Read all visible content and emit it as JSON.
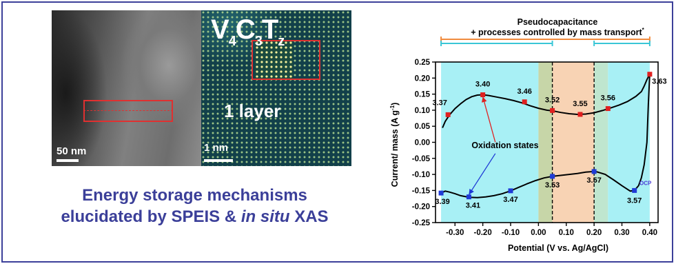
{
  "micrograph": {
    "formula": {
      "V": "V",
      "n1": "4",
      "C": "C",
      "n2": "3",
      "T": "T",
      "z": "z"
    },
    "layer_label": "1 layer",
    "scale_left": "50 nm",
    "scale_right": "1 nm"
  },
  "caption": {
    "line1": "Energy storage mechanisms",
    "line2_prefix": "elucidated by SPEIS & ",
    "line2_italic": "in situ",
    "line2_suffix": " XAS"
  },
  "chart_data": {
    "type": "line",
    "title": "",
    "xlabel": "Potential (V vs. Ag/AgCl)",
    "ylabel_main": "Current/ mass (A g",
    "ylabel_sup": "-1",
    "ylabel_close": ")",
    "xlim": [
      -0.37,
      0.43
    ],
    "ylim": [
      -0.25,
      0.25
    ],
    "xticks": [
      -0.3,
      -0.2,
      -0.1,
      0.0,
      0.1,
      0.2,
      0.3,
      0.4
    ],
    "yticks": [
      -0.25,
      -0.2,
      -0.15,
      -0.1,
      -0.05,
      0.0,
      0.05,
      0.1,
      0.15,
      0.2,
      0.25
    ],
    "top_label_1": "Pseudocapacitance",
    "top_label_2": "+ processes controlled by mass transport",
    "top_label_2_mark": "*",
    "regions": [
      {
        "x0": -0.35,
        "x1": 0.0,
        "color": "#a8f0f5"
      },
      {
        "x0": 0.0,
        "x1": 0.05,
        "color": "#c7d6a8"
      },
      {
        "x0": 0.05,
        "x1": 0.2,
        "color": "#f8d3b4"
      },
      {
        "x0": 0.2,
        "x1": 0.25,
        "color": "#bfe6cf"
      },
      {
        "x0": 0.25,
        "x1": 0.4,
        "color": "#a8f0f5"
      }
    ],
    "dashed_lines": [
      0.05,
      0.2
    ],
    "brackets": [
      {
        "x0": -0.35,
        "x1": 0.4,
        "color": "#f08a3c",
        "level": "upper"
      },
      {
        "x0": -0.35,
        "x1": 0.05,
        "color": "#39c6d6",
        "level": "lower"
      },
      {
        "x0": 0.2,
        "x1": 0.4,
        "color": "#39c6d6",
        "level": "lower"
      }
    ],
    "series": [
      {
        "curve": "anodic",
        "x": [
          -0.345,
          -0.335,
          -0.32,
          -0.3,
          -0.28,
          -0.26,
          -0.24,
          -0.22,
          -0.2,
          -0.18,
          -0.15,
          -0.12,
          -0.09,
          -0.06,
          -0.03,
          0.0,
          0.03,
          0.05,
          0.08,
          0.11,
          0.14,
          0.17,
          0.2,
          0.23,
          0.26,
          0.29,
          0.32,
          0.35,
          0.37,
          0.38,
          0.39,
          0.4
        ],
        "y": [
          0.045,
          0.065,
          0.085,
          0.105,
          0.12,
          0.133,
          0.142,
          0.147,
          0.148,
          0.146,
          0.141,
          0.136,
          0.13,
          0.123,
          0.114,
          0.106,
          0.1,
          0.098,
          0.093,
          0.089,
          0.087,
          0.088,
          0.092,
          0.099,
          0.107,
          0.116,
          0.127,
          0.143,
          0.158,
          0.175,
          0.195,
          0.212
        ]
      },
      {
        "curve": "cathodic",
        "x": [
          0.4,
          0.395,
          0.39,
          0.38,
          0.37,
          0.36,
          0.345,
          0.33,
          0.3,
          0.27,
          0.24,
          0.21,
          0.2,
          0.17,
          0.14,
          0.11,
          0.08,
          0.05,
          0.02,
          -0.01,
          -0.04,
          -0.07,
          -0.1,
          -0.13,
          -0.16,
          -0.19,
          -0.22,
          -0.25,
          -0.28,
          -0.3,
          -0.32,
          -0.335,
          -0.35
        ],
        "y": [
          0.212,
          0.12,
          0.0,
          -0.07,
          -0.11,
          -0.135,
          -0.15,
          -0.152,
          -0.135,
          -0.117,
          -0.1,
          -0.092,
          -0.091,
          -0.093,
          -0.097,
          -0.1,
          -0.103,
          -0.106,
          -0.111,
          -0.119,
          -0.129,
          -0.14,
          -0.151,
          -0.16,
          -0.166,
          -0.17,
          -0.172,
          -0.171,
          -0.166,
          -0.16,
          -0.155,
          -0.152,
          -0.158
        ]
      }
    ],
    "anodic_points": [
      {
        "x": -0.325,
        "y": 0.086,
        "label": "3.37"
      },
      {
        "x": -0.2,
        "y": 0.148,
        "label": "3.40"
      },
      {
        "x": -0.05,
        "y": 0.126,
        "label": "3.46"
      },
      {
        "x": 0.05,
        "y": 0.099,
        "label": "3.52"
      },
      {
        "x": 0.15,
        "y": 0.087,
        "label": "3.55"
      },
      {
        "x": 0.25,
        "y": 0.105,
        "label": "3.56"
      },
      {
        "x": 0.4,
        "y": 0.212,
        "label": "3.63"
      }
    ],
    "cathodic_points": [
      {
        "x": -0.35,
        "y": -0.158,
        "label": "3.39"
      },
      {
        "x": -0.25,
        "y": -0.17,
        "label": "3.41"
      },
      {
        "x": -0.1,
        "y": -0.151,
        "label": "3.47"
      },
      {
        "x": 0.05,
        "y": -0.106,
        "label": "3.53"
      },
      {
        "x": 0.2,
        "y": -0.091,
        "label": "3.57"
      },
      {
        "x": 0.345,
        "y": -0.15,
        "label": "3.57"
      }
    ],
    "ocp_label": "OCP",
    "annotation": "Oxidation states",
    "colors": {
      "curve": "#000000",
      "anodic_marker": "#e02020",
      "cathodic_marker": "#1f3bd6",
      "arrow_red": "#e02020",
      "arrow_blue": "#1f3bd6",
      "ocp": "#4b3bd6"
    }
  }
}
